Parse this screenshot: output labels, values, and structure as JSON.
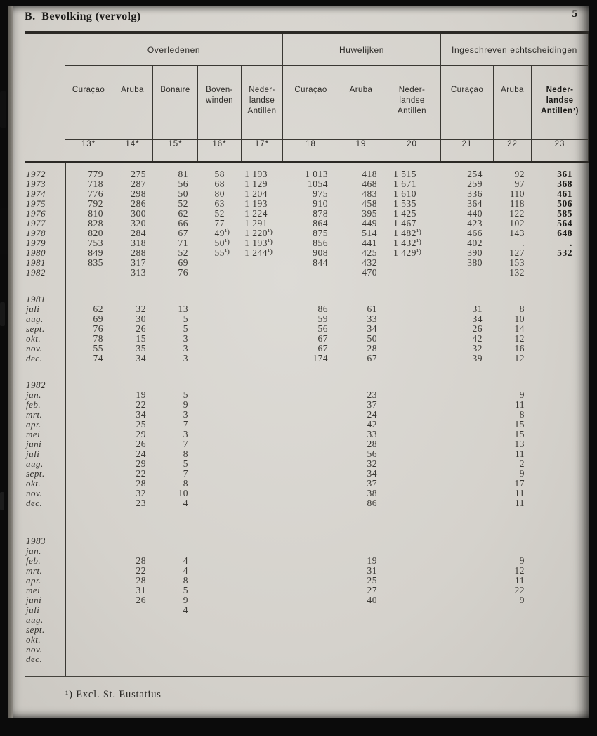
{
  "page": {
    "title": "B.  Bevolking (vervolg)",
    "page_number": "5",
    "footnote": "¹) Excl. St. Eustatius"
  },
  "table": {
    "groups": [
      {
        "label": "Overledenen"
      },
      {
        "label": "Huwelijken"
      },
      {
        "label": "Ingeschreven echtscheidingen"
      }
    ],
    "columns": [
      {
        "label": "Curaçao",
        "num": "13*"
      },
      {
        "label": "Aruba",
        "num": "14*"
      },
      {
        "label": "Bonaire",
        "num": "15*"
      },
      {
        "label": "Boven-\nwinden",
        "num": "16*"
      },
      {
        "label": "Neder-\nlandse\nAntillen",
        "num": "17*"
      },
      {
        "label": "Curaçao",
        "num": "18"
      },
      {
        "label": "Aruba",
        "num": "19"
      },
      {
        "label": "Neder-\nlandse\nAntillen",
        "num": "20"
      },
      {
        "label": "Curaçao",
        "num": "21"
      },
      {
        "label": "Aruba",
        "num": "22"
      },
      {
        "label": "Neder-\nlandse\nAntillen¹)",
        "num": "23"
      }
    ],
    "rows": [
      {
        "type": "data",
        "label": "1972",
        "cells": [
          "779",
          "275",
          "81",
          "58",
          "1 193",
          "1 013",
          "418",
          "1 515",
          "254",
          "92",
          "361"
        ]
      },
      {
        "type": "data",
        "label": "1973",
        "cells": [
          "718",
          "287",
          "56",
          "68",
          "1 129",
          "1054",
          "468",
          "1 671",
          "259",
          "97",
          "368"
        ]
      },
      {
        "type": "data",
        "label": "1974",
        "cells": [
          "776",
          "298",
          "50",
          "80",
          "1 204",
          "975",
          "483",
          "1 610",
          "336",
          "110",
          "461"
        ]
      },
      {
        "type": "data",
        "label": "1975",
        "cells": [
          "792",
          "286",
          "52",
          "63",
          "1 193",
          "910",
          "458",
          "1 535",
          "364",
          "118",
          "506"
        ]
      },
      {
        "type": "data",
        "label": "1976",
        "cells": [
          "810",
          "300",
          "62",
          "52",
          "1 224",
          "878",
          "395",
          "1 425",
          "440",
          "122",
          "585"
        ]
      },
      {
        "type": "data",
        "label": "1977",
        "cells": [
          "828",
          "320",
          "66",
          "77",
          "1 291",
          "864",
          "449",
          "1 467",
          "423",
          "102",
          "564"
        ]
      },
      {
        "type": "data",
        "label": "1978",
        "cells": [
          "820",
          "284",
          "67",
          "49¹)",
          "1 220¹)",
          "875",
          "514",
          "1 482¹)",
          "466",
          "143",
          "648"
        ]
      },
      {
        "type": "data",
        "label": "1979",
        "cells": [
          "753",
          "318",
          "71",
          "50¹)",
          "1 193¹)",
          "856",
          "441",
          "1 432¹)",
          "402",
          ".",
          "."
        ]
      },
      {
        "type": "data",
        "label": "1980",
        "cells": [
          "849",
          "288",
          "52",
          "55¹)",
          "1 244¹)",
          "908",
          "425",
          "1 429¹)",
          "390",
          "127",
          "532"
        ]
      },
      {
        "type": "data",
        "label": "1981",
        "cells": [
          "835",
          "317",
          "69",
          "",
          "",
          "844",
          "432",
          "",
          "380",
          "153",
          ""
        ]
      },
      {
        "type": "data",
        "label": "1982",
        "cells": [
          "",
          "313",
          "76",
          "",
          "",
          "",
          "470",
          "",
          "",
          "132",
          ""
        ]
      },
      {
        "type": "gap"
      },
      {
        "type": "section",
        "label": "1981"
      },
      {
        "type": "data",
        "label": "juli",
        "cells": [
          "62",
          "32",
          "13",
          "",
          "",
          "86",
          "61",
          "",
          "31",
          "8",
          ""
        ]
      },
      {
        "type": "data",
        "label": "aug.",
        "cells": [
          "69",
          "30",
          "5",
          "",
          "",
          "59",
          "33",
          "",
          "34",
          "10",
          ""
        ]
      },
      {
        "type": "data",
        "label": "sept.",
        "cells": [
          "76",
          "26",
          "5",
          "",
          "",
          "56",
          "34",
          "",
          "26",
          "14",
          ""
        ]
      },
      {
        "type": "data",
        "label": "okt.",
        "cells": [
          "78",
          "15",
          "3",
          "",
          "",
          "67",
          "50",
          "",
          "42",
          "12",
          ""
        ]
      },
      {
        "type": "data",
        "label": "nov.",
        "cells": [
          "55",
          "35",
          "3",
          "",
          "",
          "67",
          "28",
          "",
          "32",
          "16",
          ""
        ]
      },
      {
        "type": "data",
        "label": "dec.",
        "cells": [
          "74",
          "34",
          "3",
          "",
          "",
          "174",
          "67",
          "",
          "39",
          "12",
          ""
        ]
      },
      {
        "type": "gap"
      },
      {
        "type": "section",
        "label": "1982"
      },
      {
        "type": "data",
        "label": "jan.",
        "cells": [
          "",
          "19",
          "5",
          "",
          "",
          "",
          "23",
          "",
          "",
          "9",
          ""
        ]
      },
      {
        "type": "data",
        "label": "feb.",
        "cells": [
          "",
          "22",
          "9",
          "",
          "",
          "",
          "37",
          "",
          "",
          "11",
          ""
        ]
      },
      {
        "type": "data",
        "label": "mrt.",
        "cells": [
          "",
          "34",
          "3",
          "",
          "",
          "",
          "24",
          "",
          "",
          "8",
          ""
        ]
      },
      {
        "type": "data",
        "label": "apr.",
        "cells": [
          "",
          "25",
          "7",
          "",
          "",
          "",
          "42",
          "",
          "",
          "15",
          ""
        ]
      },
      {
        "type": "data",
        "label": "mei",
        "cells": [
          "",
          "29",
          "3",
          "",
          "",
          "",
          "33",
          "",
          "",
          "15",
          ""
        ]
      },
      {
        "type": "data",
        "label": "juni",
        "cells": [
          "",
          "26",
          "7",
          "",
          "",
          "",
          "28",
          "",
          "",
          "13",
          ""
        ]
      },
      {
        "type": "data",
        "label": "juli",
        "cells": [
          "",
          "24",
          "8",
          "",
          "",
          "",
          "56",
          "",
          "",
          "11",
          ""
        ]
      },
      {
        "type": "data",
        "label": "aug.",
        "cells": [
          "",
          "29",
          "5",
          "",
          "",
          "",
          "32",
          "",
          "",
          "2",
          ""
        ]
      },
      {
        "type": "data",
        "label": "sept.",
        "cells": [
          "",
          "22",
          "7",
          "",
          "",
          "",
          "34",
          "",
          "",
          "9",
          ""
        ]
      },
      {
        "type": "data",
        "label": "okt.",
        "cells": [
          "",
          "28",
          "8",
          "",
          "",
          "",
          "37",
          "",
          "",
          "17",
          ""
        ]
      },
      {
        "type": "data",
        "label": "nov.",
        "cells": [
          "",
          "32",
          "10",
          "",
          "",
          "",
          "38",
          "",
          "",
          "11",
          ""
        ]
      },
      {
        "type": "data",
        "label": "dec.",
        "cells": [
          "",
          "23",
          "4",
          "",
          "",
          "",
          "86",
          "",
          "",
          "11",
          ""
        ]
      },
      {
        "type": "gap",
        "size": "lg"
      },
      {
        "type": "section",
        "label": "1983"
      },
      {
        "type": "data",
        "label": "jan.",
        "cells": [
          "",
          "",
          "",
          "",
          "",
          "",
          "",
          "",
          "",
          "",
          ""
        ]
      },
      {
        "type": "data",
        "label": "feb.",
        "cells": [
          "",
          "28",
          "4",
          "",
          "",
          "",
          "19",
          "",
          "",
          "9",
          ""
        ]
      },
      {
        "type": "data",
        "label": "mrt.",
        "cells": [
          "",
          "22",
          "4",
          "",
          "",
          "",
          "31",
          "",
          "",
          "12",
          ""
        ]
      },
      {
        "type": "data",
        "label": "apr.",
        "cells": [
          "",
          "28",
          "8",
          "",
          "",
          "",
          "25",
          "",
          "",
          "11",
          ""
        ]
      },
      {
        "type": "data",
        "label": "mei",
        "cells": [
          "",
          "31",
          "5",
          "",
          "",
          "",
          "27",
          "",
          "",
          "22",
          ""
        ]
      },
      {
        "type": "data",
        "label": "juni",
        "cells": [
          "",
          "26",
          "9",
          "",
          "",
          "",
          "40",
          "",
          "",
          "9",
          ""
        ]
      },
      {
        "type": "data",
        "label": "juli",
        "cells": [
          "",
          "",
          "4",
          "",
          "",
          "",
          "",
          "",
          "",
          "",
          ""
        ]
      },
      {
        "type": "data",
        "label": "aug.",
        "cells": [
          "",
          "",
          "",
          "",
          "",
          "",
          "",
          "",
          "",
          "",
          ""
        ]
      },
      {
        "type": "data",
        "label": "sept.",
        "cells": [
          "",
          "",
          "",
          "",
          "",
          "",
          "",
          "",
          "",
          "",
          ""
        ]
      },
      {
        "type": "data",
        "label": "okt.",
        "cells": [
          "",
          "",
          "",
          "",
          "",
          "",
          "",
          "",
          "",
          "",
          ""
        ]
      },
      {
        "type": "data",
        "label": "nov.",
        "cells": [
          "",
          "",
          "",
          "",
          "",
          "",
          "",
          "",
          "",
          "",
          ""
        ]
      },
      {
        "type": "data",
        "label": "dec.",
        "cells": [
          "",
          "",
          "",
          "",
          "",
          "",
          "",
          "",
          "",
          "",
          ""
        ]
      }
    ]
  }
}
